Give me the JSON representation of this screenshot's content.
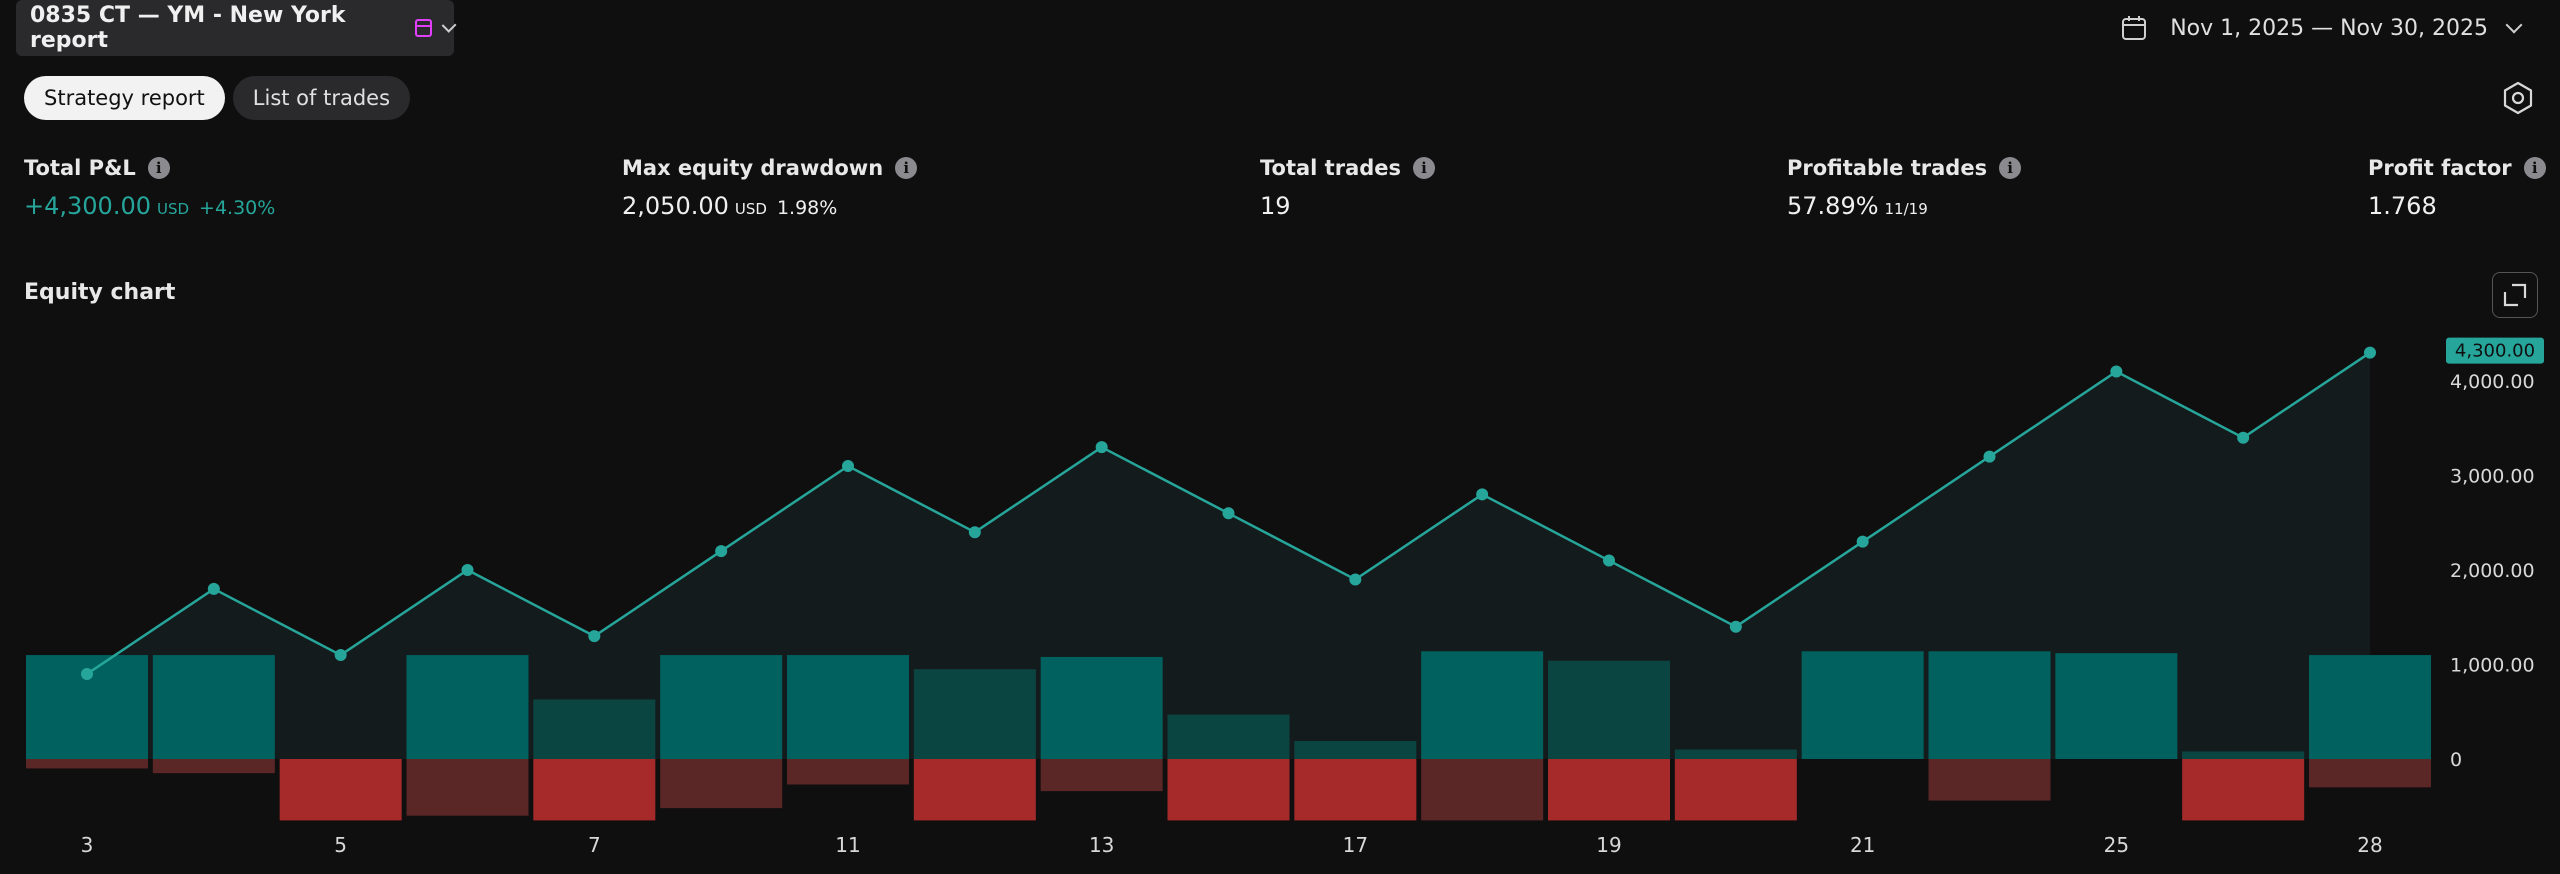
{
  "header": {
    "strategy_title": "0835 CT — YM - New York report",
    "calendar_icon": "calendar-icon",
    "chevron_icon": "chevron-down-icon",
    "date_range": "Nov 1, 2025 — Nov 30, 2025"
  },
  "tabs": [
    {
      "label": "Strategy report",
      "active": true
    },
    {
      "label": "List of trades",
      "active": false
    }
  ],
  "metrics": {
    "total_pnl": {
      "label": "Total P&L",
      "value": "+4,300.00",
      "unit": "USD",
      "extra": "+4.30%"
    },
    "max_drawdown": {
      "label": "Max equity drawdown",
      "value": "2,050.00",
      "unit": "USD",
      "extra": "1.98%"
    },
    "total_trades": {
      "label": "Total trades",
      "value": "19"
    },
    "profitable_trades": {
      "label": "Profitable trades",
      "value": "57.89%",
      "extra": "11/19"
    },
    "profit_factor": {
      "label": "Profit factor",
      "value": "1.768"
    }
  },
  "equity": {
    "title": "Equity chart",
    "last_value_label": "4,300.00"
  },
  "colors": {
    "accent": "#26a69a",
    "bar_up": "#00615e",
    "bar_up_faded": "#0b4542",
    "bar_down": "#a62a2a",
    "bar_down_faded": "#5a2626",
    "background": "#0f0f10"
  },
  "chart_data": {
    "type": "line",
    "x_ticks": [
      "3",
      "5",
      "7",
      "11",
      "13",
      "17",
      "19",
      "21",
      "25",
      "28"
    ],
    "y_ticks": [
      "0",
      "1,000.00",
      "2,000.00",
      "3,000.00",
      "4,000.00"
    ],
    "ylim": [
      -650,
      4600
    ],
    "series": [
      {
        "values": [
          900,
          1800,
          1100,
          2000,
          1300,
          2200,
          3100,
          2400,
          3300,
          2600,
          1900,
          2800,
          2100,
          1400,
          2300,
          3200,
          4100,
          3400,
          4300
        ]
      }
    ],
    "bars_positive": [
      1100,
      1100,
      0,
      1100,
      630,
      1100,
      1100,
      950,
      1080,
      470,
      190,
      1140,
      1040,
      100,
      1140,
      1140,
      1120,
      80,
      1100
    ],
    "bars_positive_strong": [
      true,
      true,
      false,
      true,
      false,
      true,
      true,
      false,
      true,
      false,
      false,
      true,
      false,
      false,
      true,
      true,
      true,
      false,
      true
    ],
    "bars_negative": [
      100,
      150,
      650,
      600,
      650,
      520,
      270,
      650,
      340,
      650,
      650,
      650,
      650,
      650,
      0,
      440,
      0,
      650,
      300
    ],
    "bars_negative_strong": [
      false,
      false,
      true,
      false,
      true,
      false,
      false,
      true,
      false,
      true,
      true,
      false,
      true,
      true,
      false,
      false,
      false,
      true,
      false
    ],
    "grid": false,
    "legend": "none"
  }
}
